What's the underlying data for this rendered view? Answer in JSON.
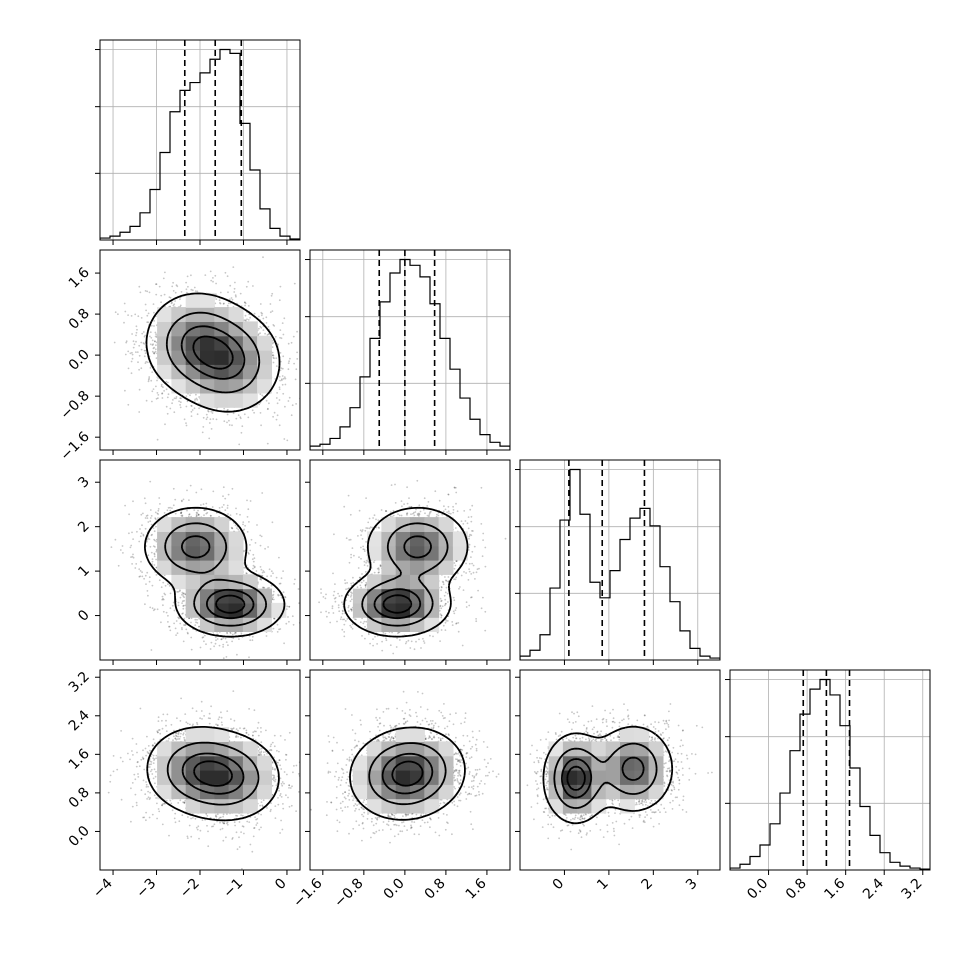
{
  "chart_data": {
    "type": "corner",
    "title": "",
    "params": [
      {
        "range": [
          -4.3,
          0.3
        ],
        "ticks": [
          -4,
          -3,
          -2,
          -1,
          0
        ],
        "tick_labels": [
          "−4",
          "−3",
          "−2",
          "−1",
          "0"
        ],
        "quantiles": [
          -2.35,
          -1.65,
          -1.05
        ],
        "hist_bins": [
          0.01,
          0.02,
          0.04,
          0.07,
          0.14,
          0.26,
          0.45,
          0.66,
          0.77,
          0.81,
          0.86,
          0.93,
          0.98,
          0.96,
          0.6,
          0.36,
          0.16,
          0.06,
          0.02,
          0.005
        ]
      },
      {
        "range": [
          -1.85,
          2.05
        ],
        "ticks": [
          -1.6,
          -0.8,
          0.0,
          0.8,
          1.6
        ],
        "tick_labels": [
          "−1.6",
          "−0.8",
          "0.0",
          "0.8",
          "1.6"
        ],
        "quantiles": [
          -0.5,
          0.0,
          0.58
        ],
        "hist_bins": [
          0.02,
          0.03,
          0.06,
          0.12,
          0.22,
          0.38,
          0.58,
          0.77,
          0.92,
          0.99,
          0.96,
          0.9,
          0.76,
          0.58,
          0.42,
          0.27,
          0.16,
          0.08,
          0.04,
          0.02
        ]
      },
      {
        "range": [
          -1.0,
          3.5
        ],
        "ticks": [
          0,
          1,
          2,
          3
        ],
        "tick_labels": [
          "0",
          "1",
          "2",
          "3"
        ],
        "quantiles": [
          0.1,
          0.85,
          1.8
        ],
        "hist_bins": [
          0.02,
          0.05,
          0.13,
          0.37,
          0.72,
          0.98,
          0.75,
          0.4,
          0.32,
          0.46,
          0.62,
          0.73,
          0.78,
          0.69,
          0.48,
          0.3,
          0.15,
          0.06,
          0.02,
          0.01
        ]
      },
      {
        "range": [
          -0.8,
          3.35
        ],
        "ticks": [
          0.0,
          0.8,
          1.6,
          2.4,
          3.2
        ],
        "tick_labels": [
          "0.0",
          "0.8",
          "1.6",
          "2.4",
          "3.2"
        ],
        "quantiles": [
          0.72,
          1.2,
          1.68
        ],
        "hist_bins": [
          0.01,
          0.03,
          0.07,
          0.13,
          0.24,
          0.4,
          0.62,
          0.81,
          0.94,
          0.99,
          0.91,
          0.75,
          0.53,
          0.33,
          0.18,
          0.09,
          0.04,
          0.02,
          0.01,
          0.005
        ]
      }
    ],
    "hist_y_ticks": [
      0.35,
      0.7,
      1.0
    ],
    "grid": true,
    "contour_levels": [
      0.118,
      0.393,
      0.675,
      0.865
    ],
    "components": [
      {
        "weight": 0.5,
        "mean": [
          -1.3,
          -0.15,
          0.25,
          1.1
        ],
        "sd": [
          0.6,
          0.5,
          0.35,
          0.45
        ]
      },
      {
        "weight": 0.5,
        "mean": [
          -2.1,
          0.25,
          1.55,
          1.3
        ],
        "sd": [
          0.6,
          0.5,
          0.45,
          0.45
        ]
      }
    ]
  }
}
